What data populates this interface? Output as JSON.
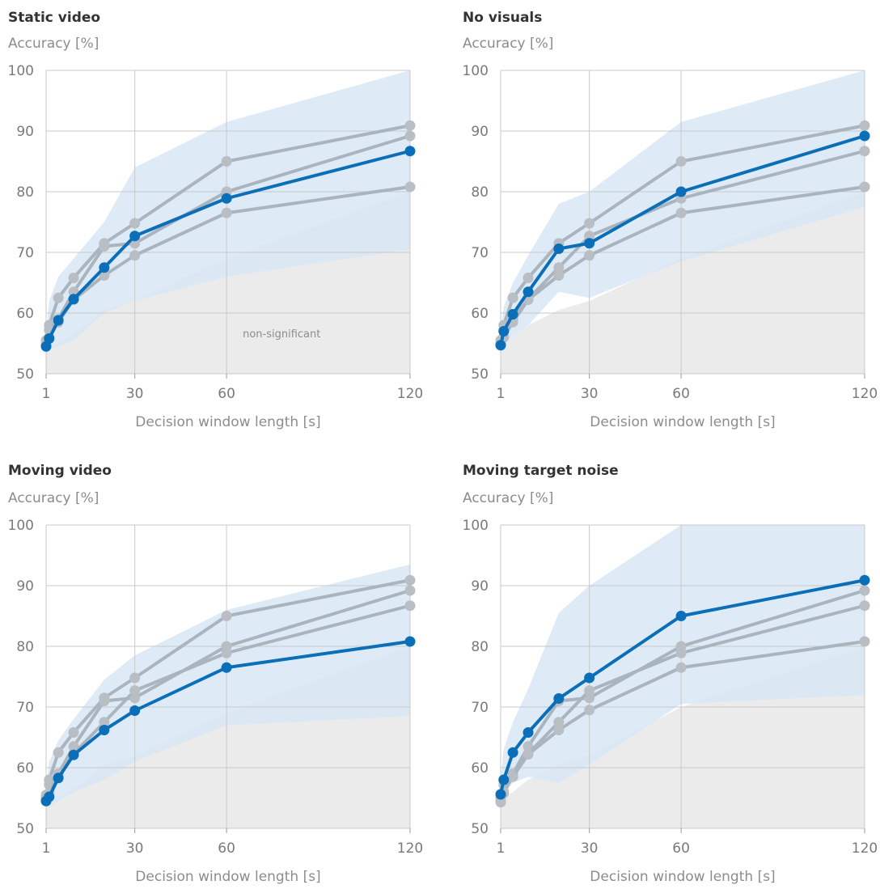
{
  "colors": {
    "highlight": "#0a6eb8",
    "other": "#a9b4bf",
    "other_marker": "#b9bec4",
    "band": "#d8e8f5",
    "nonsig": "#ebebeb",
    "grid": "#c8c8c8"
  },
  "chart_data": [
    {
      "type": "line",
      "title": "Static video",
      "ylabel": "Accuracy [%]",
      "xlabel": "Decision window length [s]",
      "xlim": [
        1,
        120
      ],
      "ylim": [
        50,
        100
      ],
      "xticks": [
        1,
        30,
        60,
        120
      ],
      "yticks": [
        50,
        60,
        70,
        80,
        90,
        100
      ],
      "grid": true,
      "annotation": "non-significant",
      "x": [
        1,
        2,
        5,
        10,
        20,
        30,
        60,
        120
      ],
      "highlight_series": 2,
      "series": [
        {
          "values": [
            55.5,
            58.0,
            62.5,
            65.8,
            71.5,
            74.8,
            85.0,
            90.9
          ]
        },
        {
          "values": [
            55.0,
            57.2,
            59.0,
            63.5,
            71.0,
            71.5,
            80.0,
            89.2
          ]
        },
        {
          "values": [
            54.5,
            55.8,
            58.8,
            62.3,
            67.5,
            72.7,
            78.9,
            86.7
          ]
        },
        {
          "values": [
            54.8,
            56.0,
            58.5,
            62.2,
            66.2,
            69.5,
            76.5,
            80.8
          ]
        }
      ],
      "band": {
        "upper": [
          57.0,
          62.0,
          66.0,
          69.0,
          75.0,
          84.0,
          91.5,
          100.0
        ],
        "lower": [
          53.0,
          54.0,
          54.5,
          55.5,
          60.0,
          62.0,
          66.0,
          70.5
        ]
      },
      "nonsig": [
        53.5,
        54.0,
        55.0,
        56.5,
        60.5,
        62.0,
        69.0,
        80.0
      ]
    },
    {
      "type": "line",
      "title": "No visuals",
      "ylabel": "Accuracy [%]",
      "xlabel": "Decision window length [s]",
      "xlim": [
        1,
        120
      ],
      "ylim": [
        50,
        100
      ],
      "xticks": [
        1,
        30,
        60,
        120
      ],
      "yticks": [
        50,
        60,
        70,
        80,
        90,
        100
      ],
      "grid": true,
      "x": [
        1,
        2,
        5,
        10,
        20,
        30,
        60,
        120
      ],
      "highlight_series": 1,
      "series": [
        {
          "values": [
            55.5,
            58.0,
            62.5,
            65.8,
            71.5,
            74.8,
            85.0,
            90.9
          ]
        },
        {
          "values": [
            54.7,
            57.0,
            59.8,
            63.5,
            70.6,
            71.5,
            80.0,
            89.2
          ]
        },
        {
          "values": [
            55.0,
            57.2,
            59.0,
            62.3,
            67.5,
            72.7,
            78.9,
            86.7
          ]
        },
        {
          "values": [
            54.8,
            56.0,
            58.5,
            62.2,
            66.2,
            69.5,
            76.5,
            80.8
          ]
        }
      ],
      "band": {
        "upper": [
          57.0,
          61.0,
          65.0,
          69.5,
          78.0,
          80.0,
          91.5,
          100.0
        ],
        "lower": [
          53.5,
          55.0,
          56.0,
          58.0,
          63.5,
          62.5,
          68.5,
          77.5
        ]
      },
      "nonsig": [
        53.5,
        55.0,
        56.0,
        58.0,
        60.5,
        62.0,
        69.0,
        80.0
      ]
    },
    {
      "type": "line",
      "title": "Moving video",
      "ylabel": "Accuracy [%]",
      "xlabel": "Decision window length [s]",
      "xlim": [
        1,
        120
      ],
      "ylim": [
        50,
        100
      ],
      "xticks": [
        1,
        30,
        60,
        120
      ],
      "yticks": [
        50,
        60,
        70,
        80,
        90,
        100
      ],
      "grid": true,
      "x": [
        1,
        2,
        5,
        10,
        20,
        30,
        60,
        120
      ],
      "highlight_series": 3,
      "series": [
        {
          "values": [
            55.5,
            58.0,
            62.5,
            65.8,
            71.5,
            74.8,
            85.0,
            90.9
          ]
        },
        {
          "values": [
            55.0,
            57.2,
            59.0,
            63.5,
            71.0,
            71.5,
            80.0,
            89.2
          ]
        },
        {
          "values": [
            54.5,
            55.8,
            58.8,
            62.3,
            67.5,
            72.7,
            78.9,
            86.7
          ]
        },
        {
          "values": [
            54.5,
            55.2,
            58.3,
            62.1,
            66.2,
            69.4,
            76.5,
            80.8
          ]
        }
      ],
      "band": {
        "upper": [
          57.0,
          61.0,
          64.5,
          68.0,
          74.5,
          78.5,
          86.0,
          93.5
        ],
        "lower": [
          53.5,
          53.5,
          54.5,
          56.0,
          58.0,
          61.0,
          67.0,
          68.5
        ]
      },
      "nonsig": [
        53.5,
        54.0,
        55.0,
        56.5,
        60.5,
        62.0,
        69.0,
        80.0
      ]
    },
    {
      "type": "line",
      "title": "Moving target noise",
      "ylabel": "Accuracy [%]",
      "xlabel": "Decision window length [s]",
      "xlim": [
        1,
        120
      ],
      "ylim": [
        50,
        100
      ],
      "xticks": [
        1,
        30,
        60,
        120
      ],
      "yticks": [
        50,
        60,
        70,
        80,
        90,
        100
      ],
      "grid": true,
      "x": [
        1,
        2,
        5,
        10,
        20,
        30,
        60,
        120
      ],
      "highlight_series": 0,
      "series": [
        {
          "values": [
            55.6,
            58.0,
            62.5,
            65.8,
            71.4,
            74.8,
            85.0,
            90.9
          ]
        },
        {
          "values": [
            55.0,
            57.2,
            59.0,
            63.5,
            71.0,
            71.5,
            80.0,
            89.2
          ]
        },
        {
          "values": [
            54.5,
            55.8,
            58.8,
            62.3,
            67.5,
            72.7,
            78.9,
            86.7
          ]
        },
        {
          "values": [
            54.3,
            56.0,
            58.5,
            62.2,
            66.2,
            69.5,
            76.5,
            80.8
          ]
        }
      ],
      "band": {
        "upper": [
          58.0,
          63.0,
          67.5,
          73.0,
          85.5,
          90.0,
          100.0,
          100.0
        ],
        "lower": [
          54.0,
          55.5,
          57.5,
          58.5,
          57.5,
          60.5,
          70.5,
          72.0
        ]
      },
      "nonsig": [
        54.0,
        55.0,
        56.0,
        58.0,
        60.5,
        62.0,
        70.0,
        80.0
      ]
    }
  ]
}
